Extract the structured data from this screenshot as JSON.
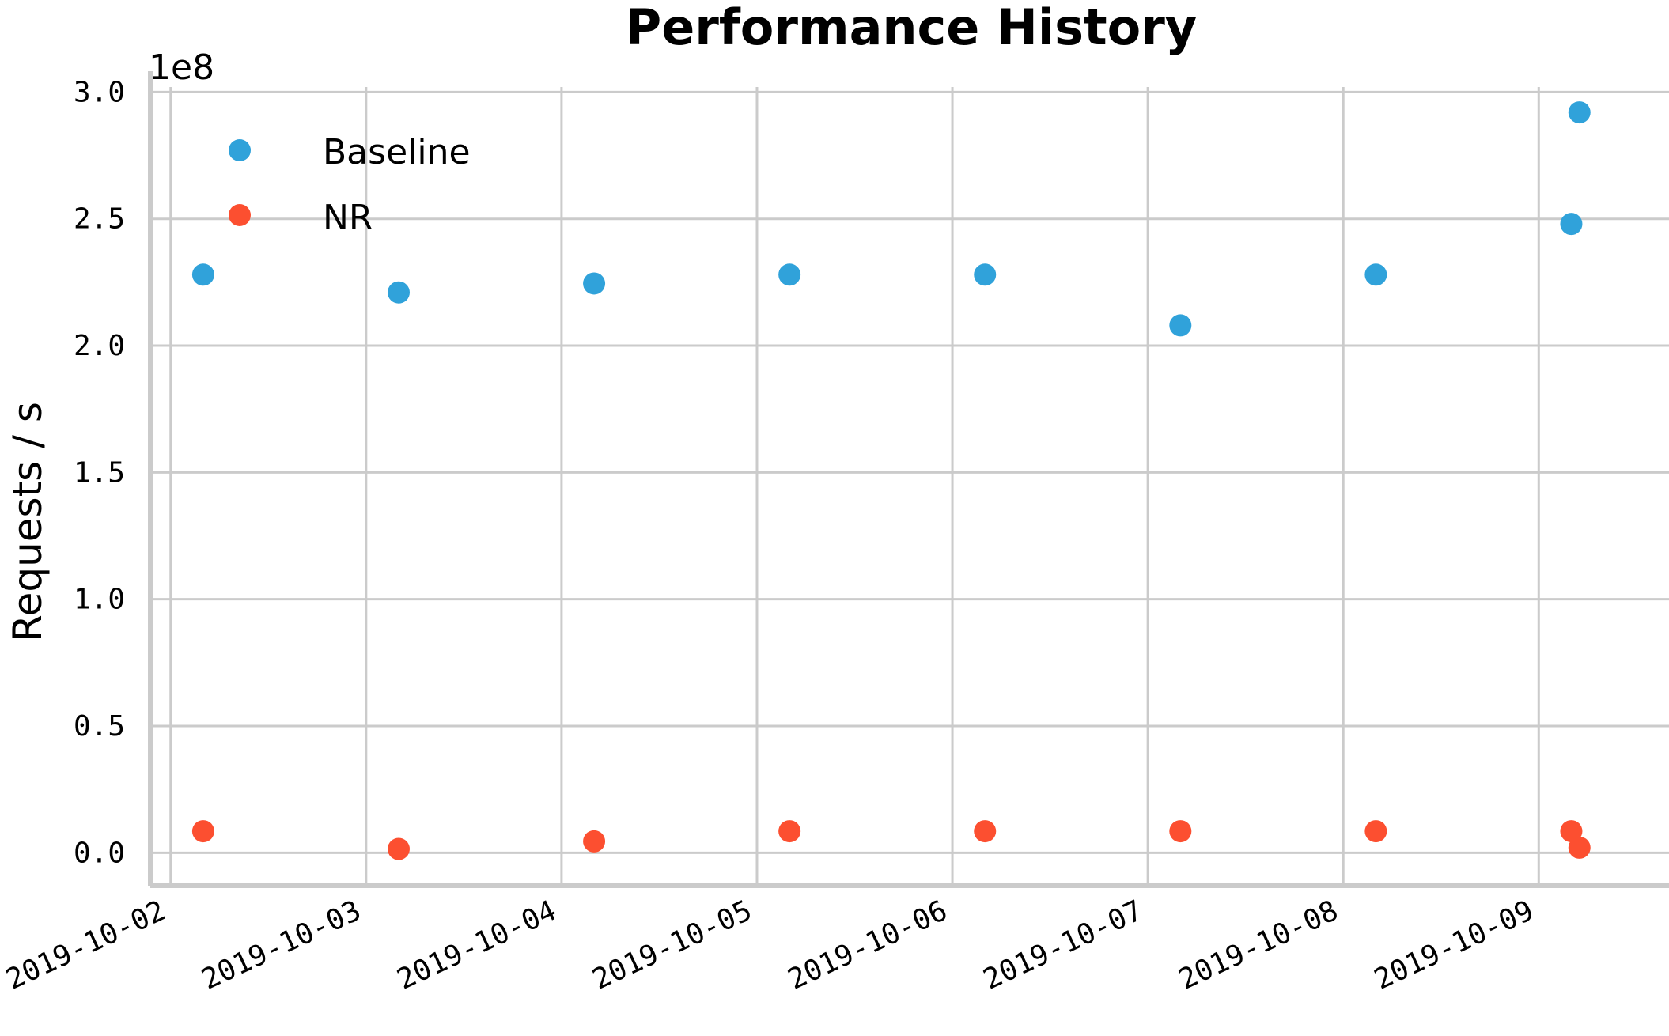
{
  "chart_data": {
    "type": "scatter",
    "title": "Performance History",
    "ylabel": "Requests / s",
    "xlabel": "",
    "y_offset_label": "1e8",
    "y_scale": 100000000,
    "ylim": [
      -0.13,
      3.02
    ],
    "xlim": [
      "2019-10-01T21:30:00",
      "2019-10-09T16:00:00"
    ],
    "x_ticks": [
      "2019-10-02",
      "2019-10-03",
      "2019-10-04",
      "2019-10-05",
      "2019-10-06",
      "2019-10-07",
      "2019-10-08",
      "2019-10-09"
    ],
    "y_ticks": [
      "0.0",
      "0.5",
      "1.0",
      "1.5",
      "2.0",
      "2.5",
      "3.0"
    ],
    "grid": true,
    "legend_position": "top-left",
    "series": [
      {
        "name": "Baseline",
        "color": "#30a2da",
        "points": [
          {
            "x": "2019-10-02T04:00:00",
            "y": 2.28
          },
          {
            "x": "2019-10-03T04:00:00",
            "y": 2.21
          },
          {
            "x": "2019-10-04T04:00:00",
            "y": 2.245
          },
          {
            "x": "2019-10-05T04:00:00",
            "y": 2.28
          },
          {
            "x": "2019-10-06T04:00:00",
            "y": 2.28
          },
          {
            "x": "2019-10-07T04:00:00",
            "y": 2.08
          },
          {
            "x": "2019-10-08T04:00:00",
            "y": 2.28
          },
          {
            "x": "2019-10-09T04:00:00",
            "y": 2.48
          },
          {
            "x": "2019-10-09T05:00:00",
            "y": 2.92
          }
        ]
      },
      {
        "name": "NR",
        "color": "#fc4f30",
        "points": [
          {
            "x": "2019-10-02T04:00:00",
            "y": 0.085
          },
          {
            "x": "2019-10-03T04:00:00",
            "y": 0.015
          },
          {
            "x": "2019-10-04T04:00:00",
            "y": 0.045
          },
          {
            "x": "2019-10-05T04:00:00",
            "y": 0.085
          },
          {
            "x": "2019-10-06T04:00:00",
            "y": 0.085
          },
          {
            "x": "2019-10-07T04:00:00",
            "y": 0.085
          },
          {
            "x": "2019-10-08T04:00:00",
            "y": 0.085
          },
          {
            "x": "2019-10-09T04:00:00",
            "y": 0.085
          },
          {
            "x": "2019-10-09T05:00:00",
            "y": 0.02
          }
        ]
      }
    ]
  }
}
